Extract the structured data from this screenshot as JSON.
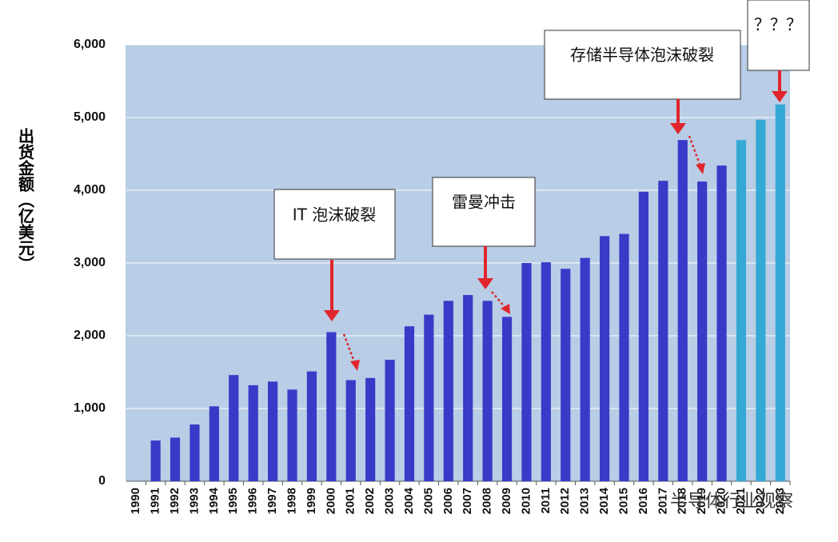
{
  "chart_data": {
    "type": "bar",
    "y_label": "出货金额（亿美元）",
    "categories": [
      "1990",
      "1991",
      "1992",
      "1993",
      "1994",
      "1995",
      "1996",
      "1997",
      "1998",
      "1999",
      "2000",
      "2001",
      "2002",
      "2003",
      "2004",
      "2005",
      "2006",
      "2007",
      "2008",
      "2009",
      "2010",
      "2011",
      "2012",
      "2013",
      "2014",
      "2015",
      "2016",
      "2017",
      "2018",
      "2019",
      "2020",
      "2021",
      "2022",
      "2023"
    ],
    "values": [
      null,
      560,
      600,
      780,
      1030,
      1460,
      1320,
      1370,
      1260,
      1510,
      2050,
      1390,
      1420,
      1670,
      2130,
      2290,
      2480,
      2560,
      2480,
      2260,
      3000,
      3010,
      2920,
      3070,
      3370,
      3400,
      3980,
      4130,
      4690,
      4120,
      4340,
      4690,
      4970,
      5180
    ],
    "colors": [
      "#3a3ac8",
      "#3a3ac8",
      "#3a3ac8",
      "#3a3ac8",
      "#3a3ac8",
      "#3a3ac8",
      "#3a3ac8",
      "#3a3ac8",
      "#3a3ac8",
      "#3a3ac8",
      "#3a3ac8",
      "#3a3ac8",
      "#3a3ac8",
      "#3a3ac8",
      "#3a3ac8",
      "#3a3ac8",
      "#3a3ac8",
      "#3a3ac8",
      "#3a3ac8",
      "#3a3ac8",
      "#3a3ac8",
      "#3a3ac8",
      "#3a3ac8",
      "#3a3ac8",
      "#3a3ac8",
      "#3a3ac8",
      "#3a3ac8",
      "#3a3ac8",
      "#3a3ac8",
      "#3a3ac8",
      "#3a3ac8",
      "#35a9d6",
      "#35a9d6",
      "#35a9d6"
    ],
    "ylim": [
      0,
      6000
    ],
    "yticks": [
      0,
      {
        "value": 1000,
        "label": "1,000"
      },
      {
        "value": 2000,
        "label": "2,000"
      },
      {
        "value": 3000,
        "label": "3,000"
      },
      {
        "value": 4000,
        "label": "4,000"
      },
      {
        "value": 5000,
        "label": "5,000"
      },
      {
        "value": 6000,
        "label": "6,000"
      }
    ],
    "grid": true,
    "annotations": [
      "IT 泡沫破裂",
      "雷曼冲击",
      "存储半导体泡沫破裂",
      "？？？"
    ],
    "watermark": "半导体行业观察"
  }
}
